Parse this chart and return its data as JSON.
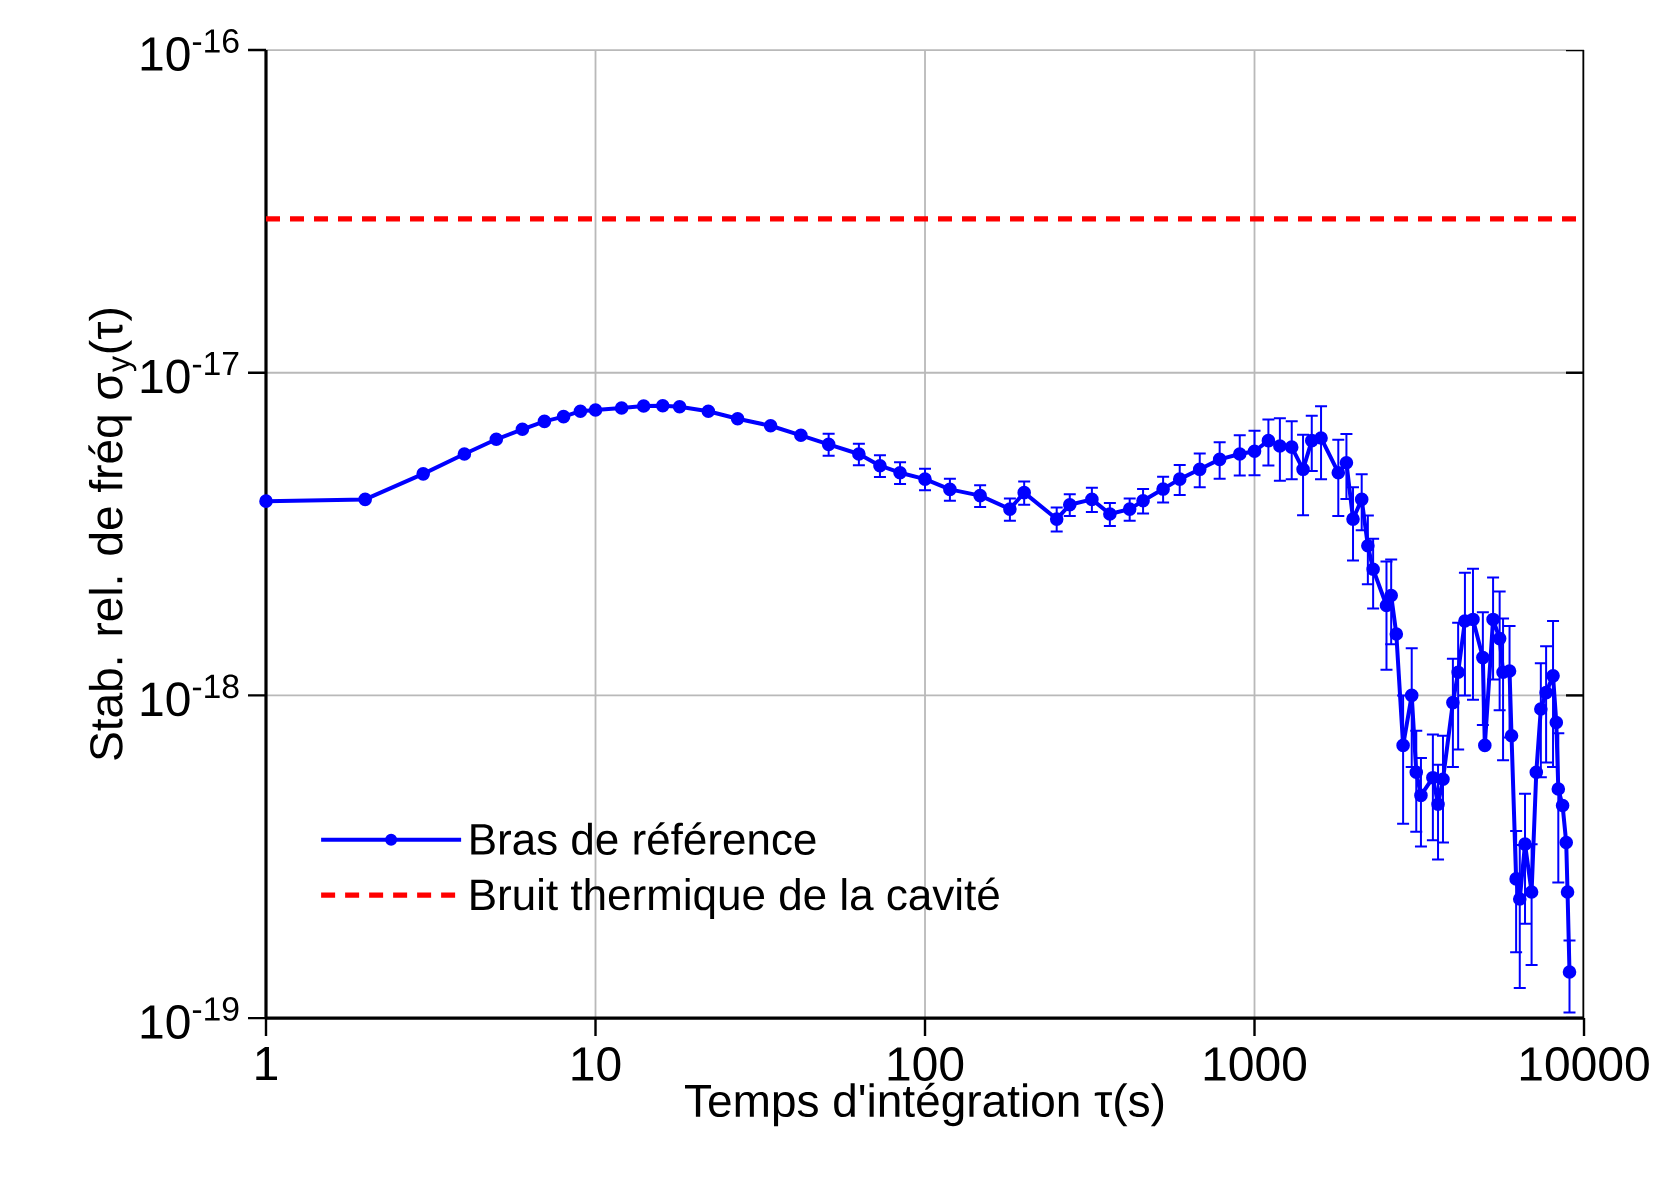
{
  "chart_data": {
    "type": "line",
    "xlabel": "Temps d'intégration τ(s)",
    "ylabel": "Stab. rel. de fréq σ$_{y}$(τ)",
    "log": "xy",
    "grid": true,
    "legend": "bottom left",
    "marker": "circle",
    "line_style": "solid",
    "xlim": [
      1,
      10000
    ],
    "xticks": [
      1,
      10,
      100,
      1000,
      10000
    ],
    "ylim": [
      1e-19,
      1e-16
    ],
    "yticks": [
      {
        "value": 1e-19,
        "label": "10$^{-19}$"
      },
      {
        "value": 1e-18,
        "label": "10$^{-18}$"
      },
      {
        "value": 1e-17,
        "label": "10$^{-17}$"
      },
      {
        "value": 1e-16,
        "label": "10$^{-16}$"
      }
    ],
    "x": [
      1,
      2,
      3,
      4,
      5,
      6,
      7,
      8,
      9,
      10,
      12,
      14,
      16,
      18,
      22,
      27,
      34,
      42,
      51,
      63,
      73,
      84,
      100,
      119,
      147,
      181,
      200,
      251,
      275,
      321,
      364,
      418,
      459,
      528,
      593,
      682,
      784,
      902,
      1000,
      1102,
      1194,
      1297,
      1404,
      1492,
      1592,
      1796,
      1901,
      1991,
      2115,
      2208,
      2291,
      2515,
      2599,
      2694,
      2825,
      3000,
      3097,
      3200,
      3478,
      3606,
      3733,
      4000,
      4150,
      4351,
      4603,
      4932,
      5000,
      5297,
      5546,
      5680,
      5943,
      6026,
      6223,
      6383,
      6622,
      6934,
      7165,
      7396,
      7674,
      8054,
      8240,
      8356,
      8610,
      8831,
      8913,
      9036
    ],
    "series": [
      {
        "name": "Bras de référence",
        "color": "#0000ff",
        "values": [
          4e-18,
          4.05e-18,
          4.86e-18,
          5.6e-18,
          6.22e-18,
          6.68e-18,
          7.07e-18,
          7.31e-18,
          7.6e-18,
          7.67e-18,
          7.78e-18,
          7.89e-18,
          7.9e-18,
          7.85e-18,
          7.6e-18,
          7.2e-18,
          6.85e-18,
          6.4e-18,
          6e-18,
          5.6e-18,
          5.15e-18,
          4.9e-18,
          4.68e-18,
          4.35e-18,
          4.16e-18,
          3.78e-18,
          4.25e-18,
          3.52e-18,
          3.9e-18,
          4.05e-18,
          3.65e-18,
          3.78e-18,
          4.01e-18,
          4.36e-18,
          4.68e-18,
          5.02e-18,
          5.39e-18,
          5.6e-18,
          5.71e-18,
          6.16e-18,
          5.93e-18,
          5.88e-18,
          5.02e-18,
          6.16e-18,
          6.28e-18,
          4.9e-18,
          5.26e-18,
          3.52e-18,
          4.05e-18,
          2.91e-18,
          2.46e-18,
          1.9e-18,
          2.04e-18,
          1.55e-18,
          7e-19,
          1e-18,
          5.78e-19,
          4.9e-19,
          5.56e-19,
          4.6e-19,
          5.5e-19,
          9.5e-19,
          1.18e-18,
          1.7e-18,
          1.72e-18,
          1.31e-18,
          7e-19,
          1.72e-18,
          1.5e-18,
          1.18e-18,
          1.19e-18,
          7.5e-19,
          2.7e-19,
          2.34e-19,
          3.46e-19,
          2.46e-19,
          5.78e-19,
          9.08e-19,
          1.02e-18,
          1.15e-18,
          8.24e-19,
          5.13e-19,
          4.56e-19,
          3.5e-19,
          2.46e-19,
          1.39e-19
        ],
        "errors": [
          null,
          null,
          null,
          null,
          null,
          null,
          null,
          null,
          null,
          null,
          null,
          null,
          null,
          null,
          null,
          null,
          null,
          null,
          4.7e-19,
          4.3e-19,
          4e-19,
          3.8e-19,
          3.6e-19,
          3.4e-19,
          3.2e-19,
          3e-19,
          3.5e-19,
          3e-19,
          3e-19,
          3.5e-19,
          3e-19,
          3e-19,
          3.5e-19,
          4e-19,
          5e-19,
          6e-19,
          7e-19,
          8e-19,
          9e-19,
          1e-18,
          1.3e-18,
          1.2e-18,
          1.4e-18,
          1.2e-18,
          1.6e-18,
          1.3e-18,
          1.2e-18,
          9e-19,
          8e-19,
          7e-19,
          6e-19,
          7e-19,
          6e-19,
          null,
          3e-19,
          4e-19,
          2e-19,
          1.5e-19,
          2e-19,
          1.5e-19,
          2e-19,
          3.5e-19,
          5e-19,
          7e-19,
          7.5e-19,
          5e-19,
          null,
          6e-19,
          6e-19,
          5.5e-19,
          4.5e-19,
          null,
          1.1e-19,
          1.1e-19,
          1.5e-19,
          1e-19,
          null,
          3.5e-19,
          4e-19,
          5.5e-19,
          null,
          2.5e-19,
          null,
          null,
          null,
          3.5e-20
        ]
      }
    ],
    "ref_lines": [
      {
        "axis": "y",
        "value": 3e-17,
        "label": "Bruit thermique de la cavité",
        "color": "#ff0000",
        "line_style": "dashed"
      }
    ]
  }
}
